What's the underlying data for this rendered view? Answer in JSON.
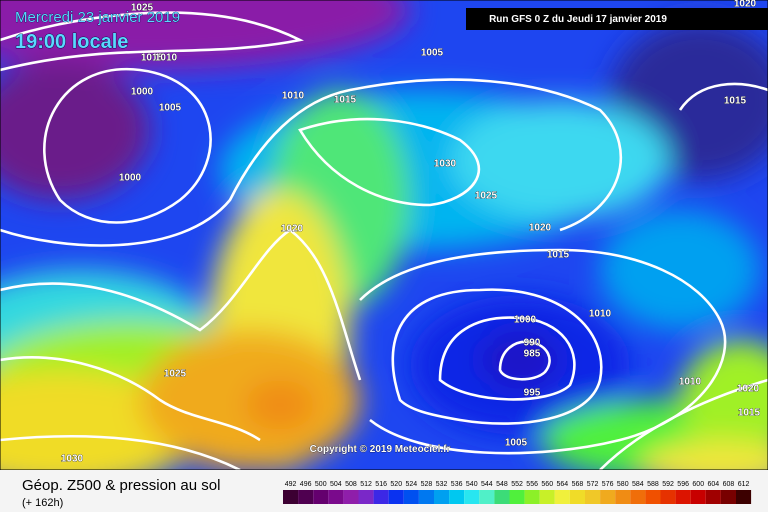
{
  "header": {
    "date": "Mercredi 23 janvier 2019",
    "time": "19:00 locale",
    "run": "Run GFS 0 Z du Jeudi 17 janvier 2019"
  },
  "isobar_labels": [
    1025,
    1015,
    1010,
    1005,
    1000,
    1005,
    1010,
    1015,
    1015,
    1030,
    1000,
    1025,
    1020,
    1020,
    1015,
    1000,
    1010,
    990,
    985,
    1025,
    1010,
    1020,
    1015,
    995,
    1005,
    1030,
    1020
  ],
  "copyright": "Copyright © 2019 Meteociel.fr",
  "footer": {
    "title": "Géop. Z500 & pression au sol",
    "lead": "(+ 162h)"
  },
  "scale": {
    "values": [
      492,
      496,
      500,
      504,
      508,
      512,
      516,
      520,
      524,
      528,
      532,
      536,
      540,
      544,
      548,
      552,
      556,
      560,
      564,
      568,
      572,
      576,
      580,
      584,
      588,
      592,
      596,
      600,
      604,
      608,
      612
    ],
    "colors": [
      "#3c0032",
      "#4f0050",
      "#64006e",
      "#7a0a8c",
      "#8f1eaa",
      "#7a28c8",
      "#3c28e6",
      "#0a32f0",
      "#0050f0",
      "#0078f0",
      "#00a0f0",
      "#00c8f0",
      "#28e6f0",
      "#50f0c8",
      "#3cdc78",
      "#50f03c",
      "#8cf028",
      "#c8f028",
      "#f0f03c",
      "#f0dc28",
      "#f0c828",
      "#f0aa1e",
      "#f08c14",
      "#f06e0a",
      "#f05000",
      "#e63200",
      "#dc1400",
      "#c80000",
      "#a00000",
      "#780000",
      "#3c0000"
    ]
  }
}
